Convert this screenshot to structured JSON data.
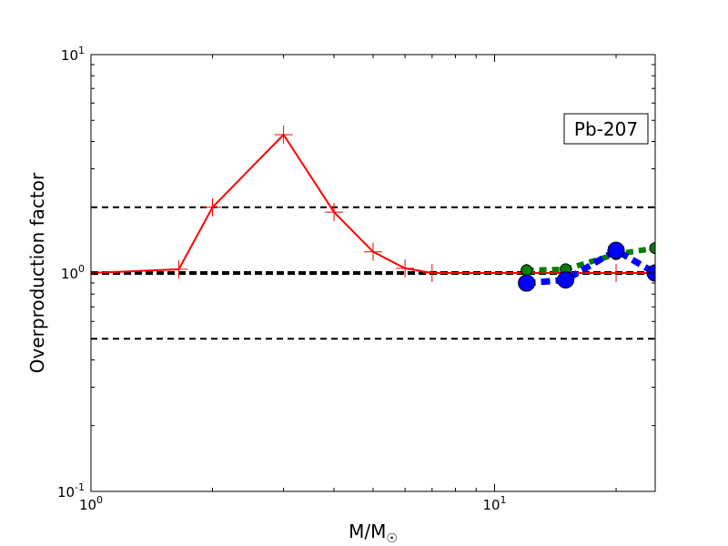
{
  "chart_data": {
    "type": "line",
    "x_scale": "log",
    "y_scale": "log",
    "xlim": [
      1,
      25
    ],
    "ylim": [
      0.1,
      10
    ],
    "ylabel": "Overproduction factor",
    "xlabel_main": "M/M",
    "xlabel_sub": "☉",
    "annotation": "Pb-207",
    "x_ticks": [
      {
        "value": 1,
        "base": "10",
        "exp": "0"
      },
      {
        "value": 10,
        "base": "10",
        "exp": "1"
      }
    ],
    "y_ticks": [
      {
        "value": 0.1,
        "base": "10",
        "exp": "-1"
      },
      {
        "value": 1,
        "base": "10",
        "exp": "0"
      },
      {
        "value": 10,
        "base": "10",
        "exp": "1"
      }
    ],
    "reference_lines": [
      {
        "y": 2,
        "style": "dashed",
        "color": "#000000"
      },
      {
        "y": 1,
        "style": "thick-dashed",
        "color": "#000000"
      },
      {
        "y": 0.5,
        "style": "dashed",
        "color": "#000000"
      }
    ],
    "series": [
      {
        "style": "solid-plus",
        "color": "#ff0000",
        "x": [
          1.0,
          1.65,
          2.0,
          3.0,
          4.0,
          5.0,
          6.0,
          7.0,
          12.0,
          15.0,
          20.0,
          25.0
        ],
        "y": [
          1.0,
          1.04,
          2.0,
          4.3,
          1.9,
          1.25,
          1.05,
          1.0,
          1.0,
          1.0,
          1.0,
          1.0
        ]
      },
      {
        "style": "dashed-circle",
        "color": "#008000",
        "x": [
          12.0,
          15.0,
          20.0,
          25.0
        ],
        "y": [
          1.03,
          1.04,
          1.22,
          1.3
        ]
      },
      {
        "style": "dashed-circle-large",
        "color": "#0000ff",
        "x": [
          12.0,
          15.0,
          20.0,
          25.0
        ],
        "y": [
          0.9,
          0.93,
          1.27,
          1.0
        ]
      }
    ]
  }
}
